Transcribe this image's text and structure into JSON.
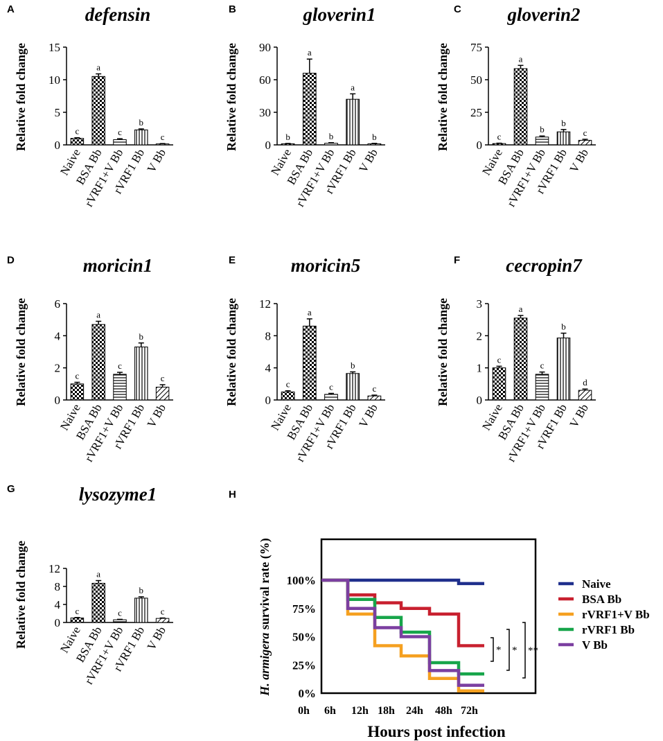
{
  "figure": {
    "ylabel": "Relative fold change"
  },
  "chart_data": [
    {
      "panel": "A",
      "type": "bar",
      "title": "defensin",
      "ylabel": "Relative fold change",
      "categories": [
        "Naive",
        "BSA Bb",
        "rVRF1+V Bb",
        "rVRF1 Bb",
        "V Bb"
      ],
      "values": [
        1.0,
        10.5,
        0.8,
        2.3,
        0.15
      ],
      "errors": [
        0.1,
        0.4,
        0.15,
        0.15,
        0.05
      ],
      "letters": [
        "c",
        "a",
        "c",
        "b",
        "c"
      ],
      "ylim": [
        0,
        15
      ],
      "yticks": [
        0,
        5,
        10,
        15
      ],
      "patterns": [
        "check",
        "check",
        "hlines",
        "vlines",
        "diag"
      ]
    },
    {
      "panel": "B",
      "type": "bar",
      "title": "gloverin1",
      "ylabel": "Relative fold change",
      "categories": [
        "Naive",
        "BSA Bb",
        "rVRF1+V Bb",
        "rVRF1 Bb",
        "V Bb"
      ],
      "values": [
        1.0,
        66,
        1.5,
        42,
        1.0
      ],
      "errors": [
        0.3,
        13,
        0.5,
        5,
        0.4
      ],
      "letters": [
        "b",
        "a",
        "b",
        "a",
        "b"
      ],
      "ylim": [
        0,
        90
      ],
      "yticks": [
        0,
        30,
        60,
        90
      ],
      "patterns": [
        "check",
        "check",
        "hlines",
        "vlines",
        "diag"
      ]
    },
    {
      "panel": "C",
      "type": "bar",
      "title": "gloverin2",
      "ylabel": "Relative fold change",
      "categories": [
        "Naive",
        "BSA Bb",
        "rVRF1+V Bb",
        "rVRF1 Bb",
        "V Bb"
      ],
      "values": [
        1.0,
        58.5,
        6,
        10,
        3.5
      ],
      "errors": [
        0.3,
        2.5,
        0.8,
        1.8,
        0.8
      ],
      "letters": [
        "c",
        "a",
        "b",
        "b",
        "c"
      ],
      "ylim": [
        0,
        75
      ],
      "yticks": [
        0,
        25,
        50,
        75
      ],
      "patterns": [
        "check",
        "check",
        "hlines",
        "vlines",
        "diag"
      ]
    },
    {
      "panel": "D",
      "type": "bar",
      "title": "moricin1",
      "ylabel": "Relative fold change",
      "categories": [
        "Naive",
        "BSA Bb",
        "rVRF1+V Bb",
        "rVRF1 Bb",
        "V Bb"
      ],
      "values": [
        1.0,
        4.7,
        1.6,
        3.3,
        0.8
      ],
      "errors": [
        0.1,
        0.2,
        0.12,
        0.25,
        0.15
      ],
      "letters": [
        "c",
        "a",
        "c",
        "b",
        "c"
      ],
      "ylim": [
        0,
        6
      ],
      "yticks": [
        0,
        2,
        4,
        6
      ],
      "patterns": [
        "check",
        "check",
        "hlines",
        "vlines",
        "diag"
      ]
    },
    {
      "panel": "E",
      "type": "bar",
      "title": "moricin5",
      "ylabel": "Relative fold change",
      "categories": [
        "Naive",
        "BSA Bb",
        "rVRF1+V Bb",
        "rVRF1 Bb",
        "V Bb"
      ],
      "values": [
        1.0,
        9.2,
        0.7,
        3.3,
        0.5
      ],
      "errors": [
        0.15,
        0.9,
        0.12,
        0.2,
        0.1
      ],
      "letters": [
        "c",
        "a",
        "c",
        "b",
        "c"
      ],
      "ylim": [
        0,
        12
      ],
      "yticks": [
        0,
        4,
        8,
        12
      ],
      "patterns": [
        "check",
        "check",
        "hlines",
        "vlines",
        "diag"
      ]
    },
    {
      "panel": "F",
      "type": "bar",
      "title": "cecropin7",
      "ylabel": "Relative fold change",
      "categories": [
        "Naive",
        "BSA Bb",
        "rVRF1+V Bb",
        "rVRF1 Bb",
        "V Bb"
      ],
      "values": [
        1.0,
        2.55,
        0.8,
        1.93,
        0.3
      ],
      "errors": [
        0.05,
        0.08,
        0.07,
        0.15,
        0.04
      ],
      "letters": [
        "c",
        "a",
        "c",
        "b",
        "d"
      ],
      "ylim": [
        0,
        3
      ],
      "yticks": [
        0,
        1,
        2,
        3
      ],
      "patterns": [
        "check",
        "check",
        "hlines",
        "vlines",
        "diag"
      ]
    },
    {
      "panel": "G",
      "type": "bar",
      "title": "lysozyme1",
      "ylabel": "Relative fold change",
      "categories": [
        "Naive",
        "BSA Bb",
        "rVRF1+V Bb",
        "rVRF1 Bb",
        "V Bb"
      ],
      "values": [
        1.0,
        8.7,
        0.6,
        5.4,
        0.9
      ],
      "errors": [
        0.1,
        0.6,
        0.1,
        0.3,
        0.1
      ],
      "letters": [
        "c",
        "a",
        "c",
        "b",
        "c"
      ],
      "ylim": [
        0,
        12
      ],
      "yticks": [
        0,
        4,
        8,
        12
      ],
      "patterns": [
        "check",
        "check",
        "hlines",
        "vlines",
        "diag"
      ]
    },
    {
      "panel": "H",
      "type": "line",
      "step": true,
      "ylabel_italic": "H. armigera",
      "ylabel_rest": " survival rate (%)",
      "xlabel": "Hours post infection",
      "x": [
        "0h",
        "6h",
        "12h",
        "18h",
        "24h",
        "48h",
        "72h"
      ],
      "yticks": [
        "0%",
        "25%",
        "50%",
        "75%",
        "100%"
      ],
      "ylim": [
        0,
        100
      ],
      "series": [
        {
          "name": "Naive",
          "color": "#1f2f8c",
          "values": [
            100,
            100,
            100,
            100,
            100,
            97,
            97
          ]
        },
        {
          "name": "BSA Bb",
          "color": "#c8202f",
          "values": [
            100,
            87,
            80,
            75,
            70,
            42,
            42
          ]
        },
        {
          "name": "rVRF1+V Bb",
          "color": "#f5a020",
          "values": [
            100,
            70,
            42,
            33,
            13,
            2,
            2
          ]
        },
        {
          "name": "rVRF1 Bb",
          "color": "#17a54a",
          "values": [
            100,
            83,
            67,
            54,
            27,
            17,
            17
          ]
        },
        {
          "name": "V Bb",
          "color": "#7b3fa0",
          "values": [
            100,
            75,
            58,
            50,
            20,
            7,
            7
          ]
        }
      ],
      "significance": [
        "*",
        "*",
        "**"
      ]
    }
  ]
}
